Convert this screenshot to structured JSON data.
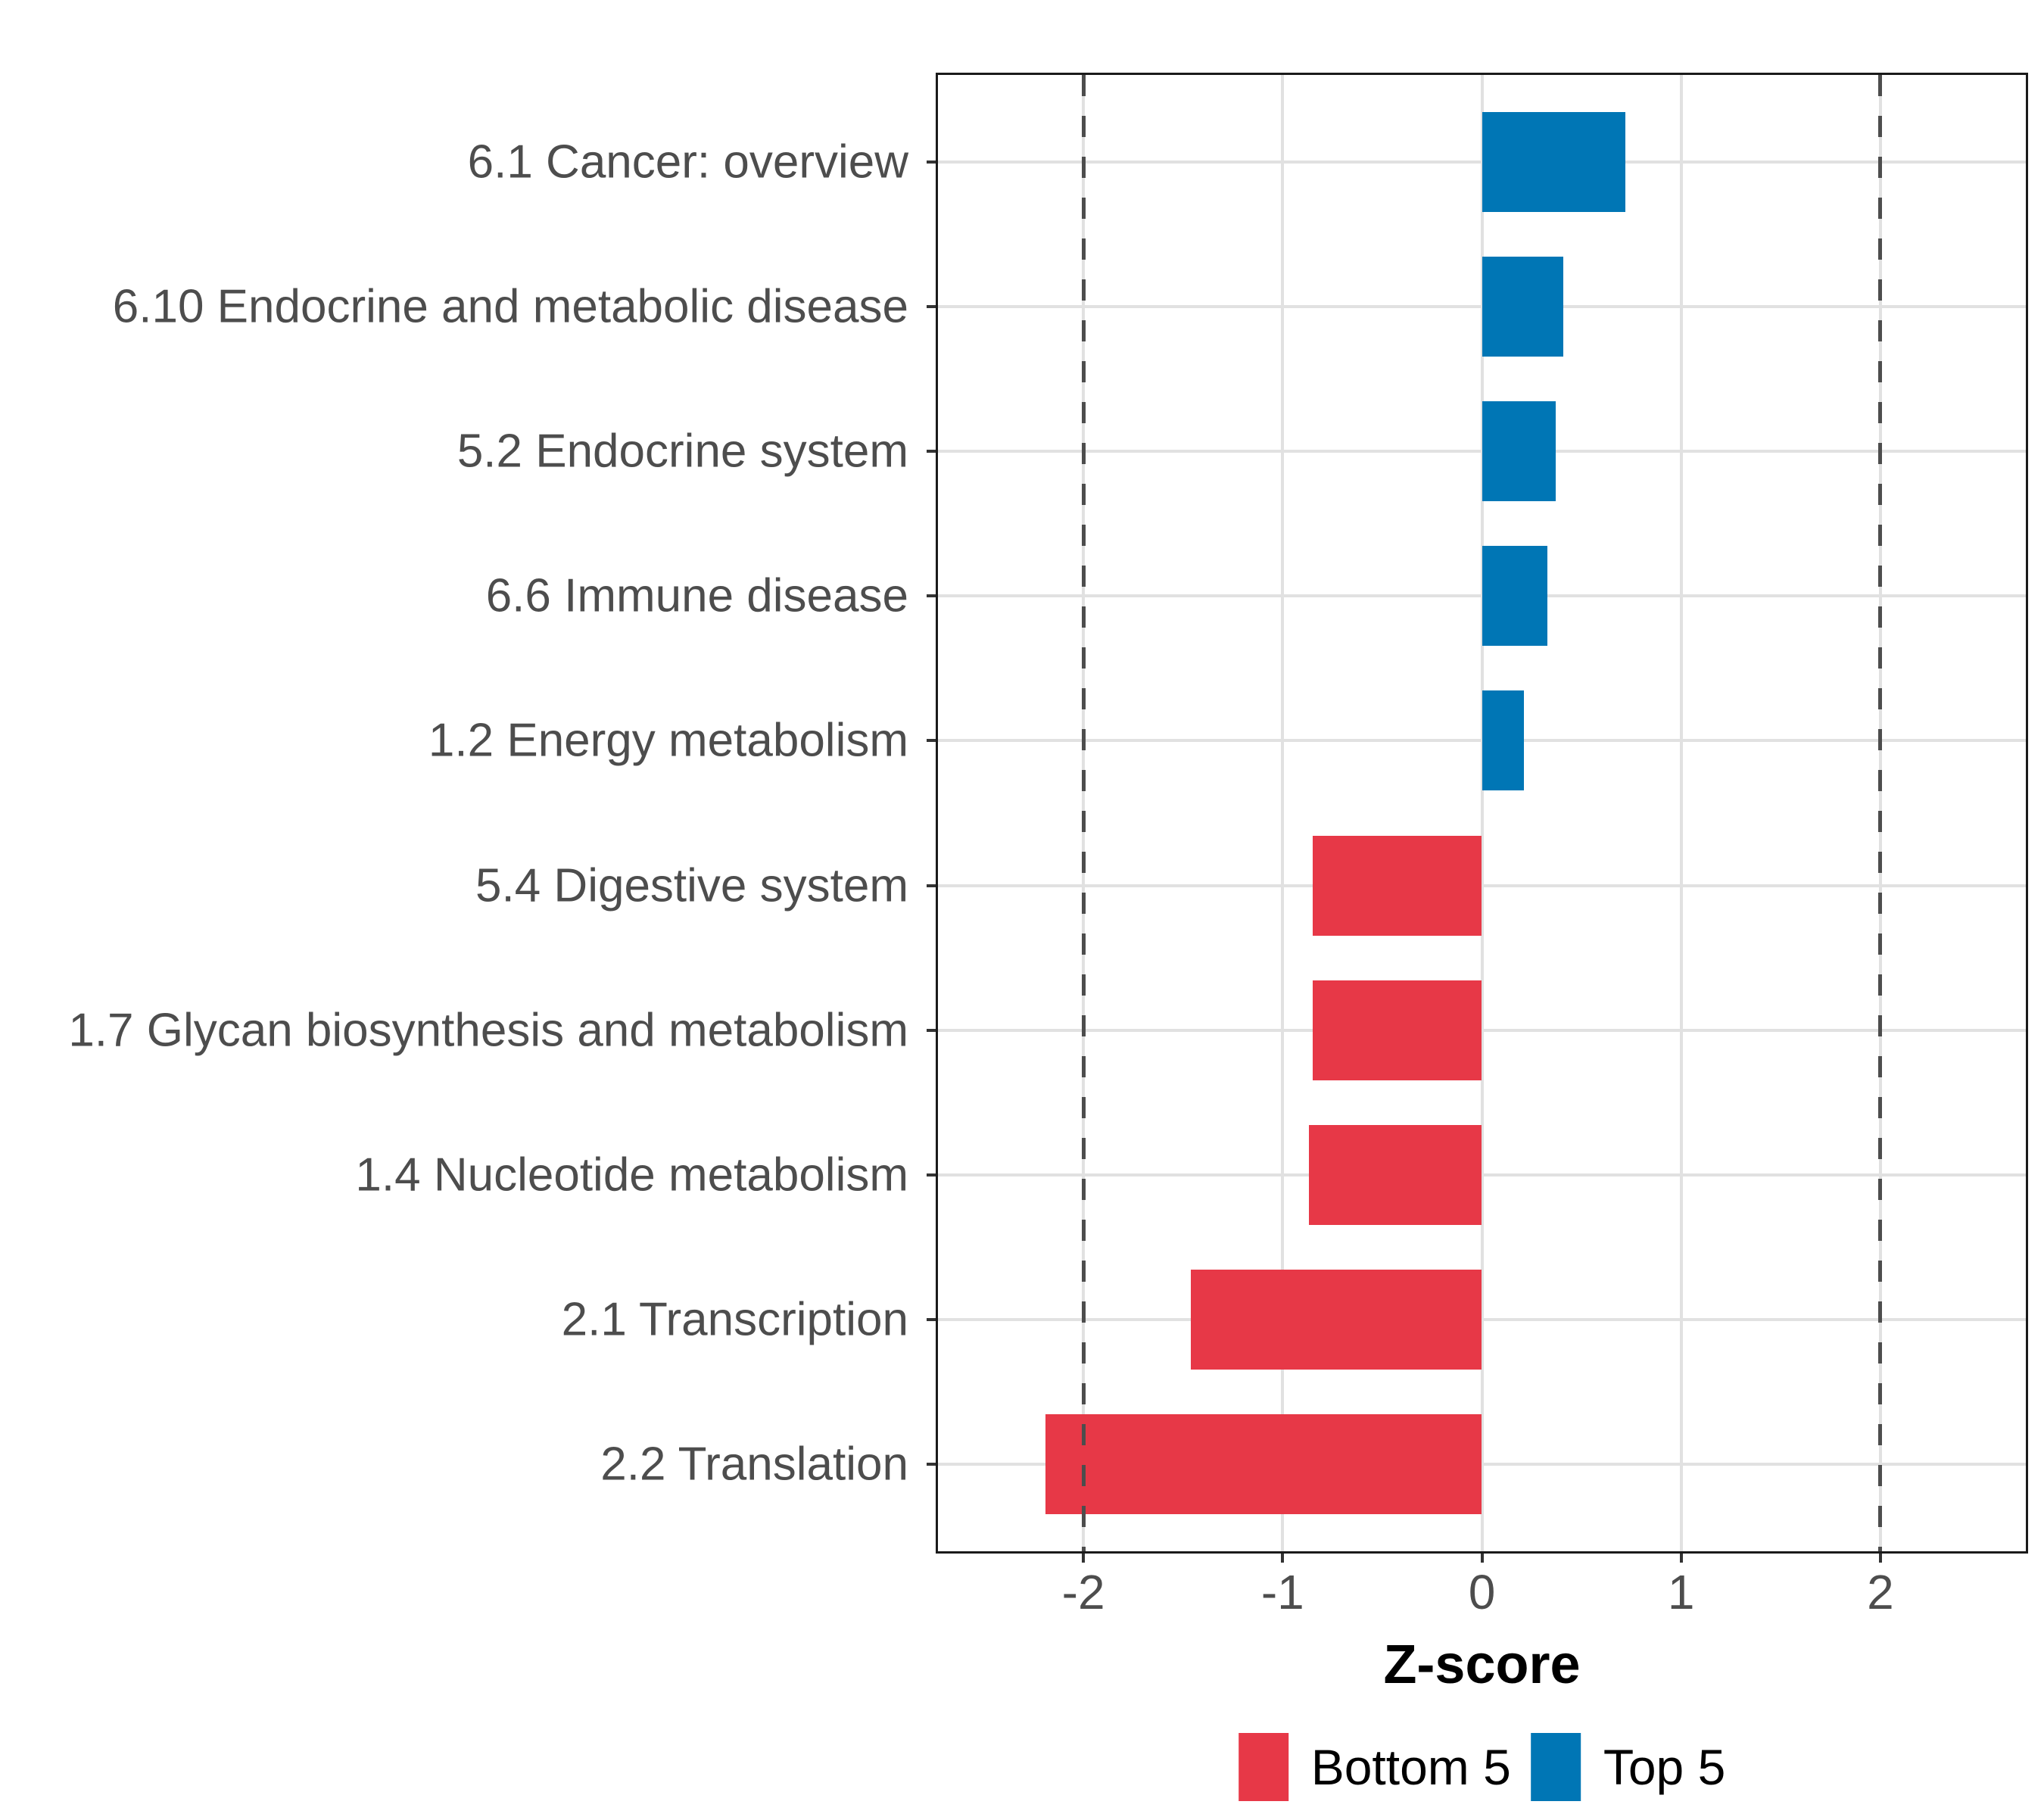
{
  "chart_data": {
    "type": "bar",
    "orientation": "horizontal",
    "title": "",
    "xlabel": "Z-score",
    "categories": [
      "6.1 Cancer: overview",
      "6.10 Endocrine and metabolic disease",
      "5.2 Endocrine system",
      "6.6 Immune disease",
      "1.2 Energy metabolism",
      "5.4 Digestive system",
      "1.7 Glycan biosynthesis and metabolism",
      "1.4 Nucleotide metabolism",
      "2.1 Transcription",
      "2.2 Translation"
    ],
    "values": [
      0.72,
      0.41,
      0.37,
      0.33,
      0.21,
      -0.85,
      -0.85,
      -0.87,
      -1.46,
      -2.19
    ],
    "groups": [
      "Top 5",
      "Top 5",
      "Top 5",
      "Top 5",
      "Top 5",
      "Bottom 5",
      "Bottom 5",
      "Bottom 5",
      "Bottom 5",
      "Bottom 5"
    ],
    "xlim": [
      -2.73,
      2.73
    ],
    "x_ticks": [
      -2,
      -1,
      0,
      1,
      2
    ],
    "x_tick_labels": [
      "-2",
      "-1",
      "0",
      "1",
      "2"
    ],
    "reference_lines": [
      -2,
      2
    ],
    "grid": true,
    "legend_position": "bottom",
    "legend": [
      {
        "label": "Bottom 5",
        "color": "#E73847"
      },
      {
        "label": "Top 5",
        "color": "#0076B5"
      }
    ],
    "colors": {
      "top5": "#0076B5",
      "bottom5": "#E73847",
      "grid": "#E1E1E1",
      "refline": "#4D4D4D",
      "axis_text": "#4D4D4D",
      "border": "#1A1A1A",
      "tick": "#333333"
    }
  }
}
